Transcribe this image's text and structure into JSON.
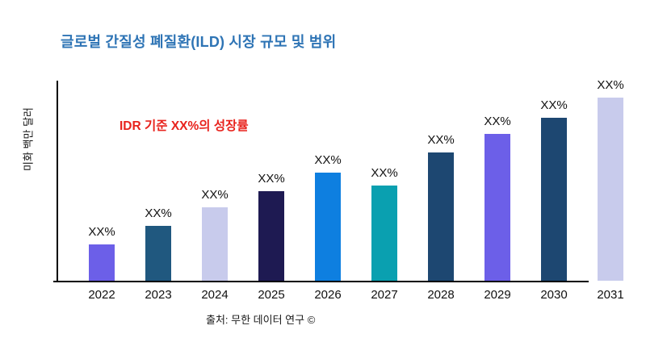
{
  "title": {
    "text": "글로벌 간질성 폐질환(ILD) 시장 규모 및 범위",
    "color": "#2E74B5"
  },
  "annotation": {
    "text": "IDR 기준 XX%의 성장률",
    "color": "#E8231D"
  },
  "source": {
    "text": "출처: 무한 데이터 연구 ©"
  },
  "chart_data": {
    "type": "bar",
    "title": "글로벌 간질성 폐질환(ILD) 시장 규모 및 범위",
    "xlabel": "",
    "ylabel": "미화 백만 달러",
    "categories": [
      "2022",
      "2023",
      "2024",
      "2025",
      "2026",
      "2027",
      "2028",
      "2029",
      "2030",
      "2031"
    ],
    "values": [
      20,
      30,
      40,
      49,
      59,
      52,
      70,
      80,
      89,
      100
    ],
    "values_note": "relative bar heights, percent of tallest (2031) bar; actual figures masked as XX% in source image",
    "value_labels": [
      "XX%",
      "XX%",
      "XX%",
      "XX%",
      "XX%",
      "XX%",
      "XX%",
      "XX%",
      "XX%",
      "XX%"
    ],
    "bar_colors": [
      "#6C5FE8",
      "#20587F",
      "#C8CBEC",
      "#1E1A52",
      "#0E7FE0",
      "#0AA0B0",
      "#1D4771",
      "#6C5FE8",
      "#1D4771",
      "#C8CBEC"
    ],
    "ylim": [
      0,
      110
    ],
    "grid": false,
    "legend": false,
    "y_ticks": [],
    "axis_color": "#000000",
    "x_axis_ends_before_last_bar": true
  }
}
